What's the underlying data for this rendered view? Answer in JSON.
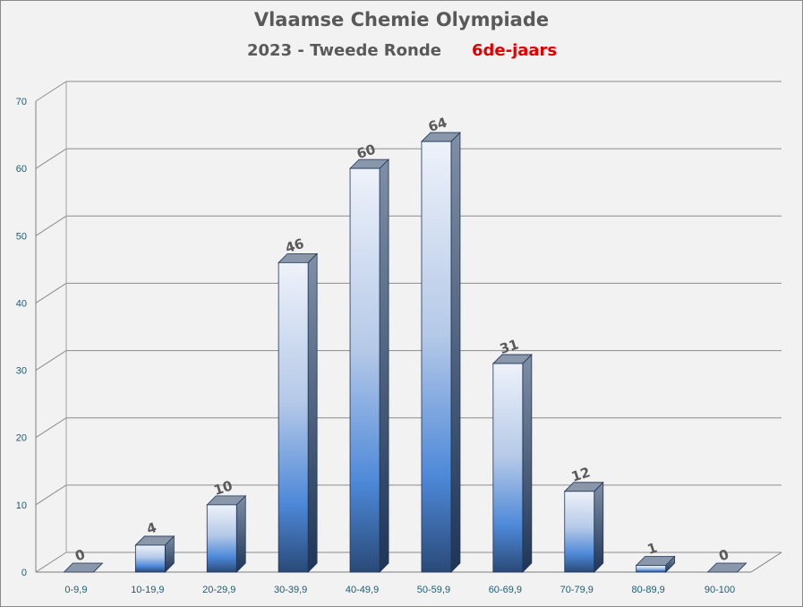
{
  "title": "Vlaamse Chemie Olympiade",
  "subtitle": "2023 - Tweede Ronde",
  "subtitle_highlight": "6de-jaars",
  "colors": {
    "title": "#595959",
    "highlight": "#e00000",
    "bar_top_light": "#e8eef8",
    "bar_mid": "#4d88d8",
    "bar_bottom_dark": "#2a4a78",
    "axis_text": "#1f5c70",
    "background": "#f2f2f2"
  },
  "chart_data": {
    "type": "bar",
    "style": "3d-column",
    "categories": [
      "0-9,9",
      "10-19,9",
      "20-29,9",
      "30-39,9",
      "40-49,9",
      "50-59,9",
      "60-69,9",
      "70-79,9",
      "80-89,9",
      "90-100"
    ],
    "values": [
      0,
      4,
      10,
      46,
      60,
      64,
      31,
      12,
      1,
      0
    ],
    "data_labels": [
      "0",
      "4",
      "10",
      "46",
      "60",
      "64",
      "31",
      "12",
      "1",
      "0"
    ],
    "ylim": [
      0,
      70
    ],
    "yticks": [
      0,
      10,
      20,
      30,
      40,
      50,
      60,
      70
    ],
    "ytick_labels": [
      "0",
      "10",
      "20",
      "30",
      "40",
      "50",
      "60",
      "70"
    ],
    "grid": true,
    "legend": false,
    "xlabel": "",
    "ylabel": ""
  }
}
